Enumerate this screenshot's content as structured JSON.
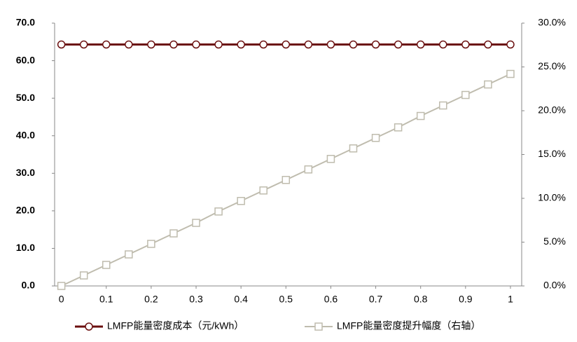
{
  "chart_data": {
    "type": "line",
    "x": [
      0,
      0.05,
      0.1,
      0.15,
      0.2,
      0.25,
      0.3,
      0.35,
      0.4,
      0.45,
      0.5,
      0.55,
      0.6,
      0.65,
      0.7,
      0.75,
      0.8,
      0.85,
      0.9,
      0.95,
      1
    ],
    "series": [
      {
        "name": "LMFP能量密度成本（元/kWh）",
        "color": "#6b0f0f",
        "values": [
          64.3,
          64.3,
          64.3,
          64.3,
          64.3,
          64.3,
          64.3,
          64.3,
          64.3,
          64.3,
          64.3,
          64.3,
          64.3,
          64.3,
          64.3,
          64.3,
          64.3,
          64.3,
          64.3,
          64.3,
          64.3
        ]
      },
      {
        "name": "LMFP能量密度提升幅度（右轴）",
        "color": "#bfbcae",
        "axis": "y2",
        "values": [
          0,
          1.2,
          2.4,
          3.6,
          4.8,
          6.0,
          7.2,
          8.5,
          9.7,
          10.9,
          12.1,
          13.3,
          14.5,
          15.7,
          16.9,
          18.1,
          19.4,
          20.6,
          21.8,
          23.0,
          24.2
        ]
      }
    ],
    "xlim": [
      -0.015,
      1.025
    ],
    "xticks": [
      0,
      0.1,
      0.2,
      0.3,
      0.4,
      0.5,
      0.6,
      0.7,
      0.8,
      0.9,
      1
    ],
    "ylim": [
      0,
      70
    ],
    "yticks": [
      {
        "value": 0,
        "label": "0.0"
      },
      {
        "value": 10,
        "label": "10.0"
      },
      {
        "value": 20,
        "label": "20.0"
      },
      {
        "value": 30,
        "label": "30.0"
      },
      {
        "value": 40,
        "label": "40.0"
      },
      {
        "value": 50,
        "label": "50.0"
      },
      {
        "value": 60,
        "label": "60.0"
      },
      {
        "value": 70,
        "label": "70.0"
      }
    ],
    "y2lim": [
      0,
      30
    ],
    "y2ticks": [
      {
        "value": 0,
        "label": "0.0%"
      },
      {
        "value": 5,
        "label": "5.0%"
      },
      {
        "value": 10,
        "label": "10.0%"
      },
      {
        "value": 15,
        "label": "15.0%"
      },
      {
        "value": 20,
        "label": "20.0%"
      },
      {
        "value": 25,
        "label": "25.0%"
      },
      {
        "value": 30,
        "label": "30.0%"
      }
    ],
    "legend": "bottom"
  }
}
